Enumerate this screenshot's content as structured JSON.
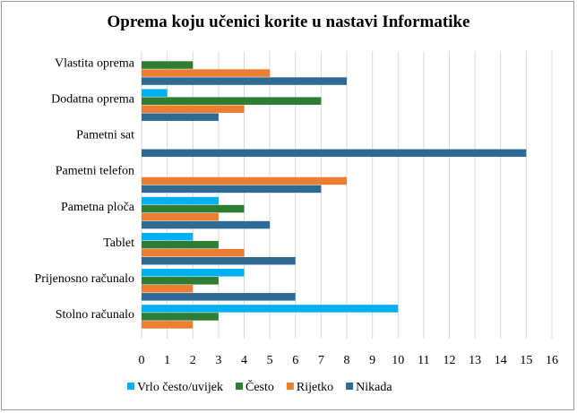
{
  "chart_data": {
    "type": "bar",
    "orientation": "horizontal",
    "title": "Oprema koju učenici korite u nastavi Informatike",
    "xlabel": "",
    "ylabel": "",
    "xlim": [
      0,
      16
    ],
    "xticks": [
      "0",
      "1",
      "2",
      "3",
      "4",
      "5",
      "6",
      "7",
      "8",
      "9",
      "10",
      "11",
      "12",
      "13",
      "14",
      "15",
      "16"
    ],
    "grid": true,
    "legend_position": "bottom",
    "categories": [
      "Vlastita oprema",
      "Dodatna oprema",
      "Pametni sat",
      "Pametni telefon",
      "Pametna ploča",
      "Tablet",
      "Prijenosno računalo",
      "Stolno računalo"
    ],
    "series": [
      {
        "name": "Vrlo često/uvijek",
        "color": "#00B0F0",
        "values": [
          0,
          1,
          0,
          0,
          3,
          2,
          4,
          10
        ]
      },
      {
        "name": "Često",
        "color": "#2E7D32",
        "values": [
          2,
          7,
          0,
          0,
          4,
          3,
          3,
          3
        ]
      },
      {
        "name": "Rijetko",
        "color": "#ED7D31",
        "values": [
          5,
          4,
          0,
          8,
          3,
          4,
          2,
          2
        ]
      },
      {
        "name": "Nikada",
        "color": "#2F6A94",
        "values": [
          8,
          3,
          15,
          7,
          5,
          6,
          6,
          0
        ]
      }
    ]
  }
}
